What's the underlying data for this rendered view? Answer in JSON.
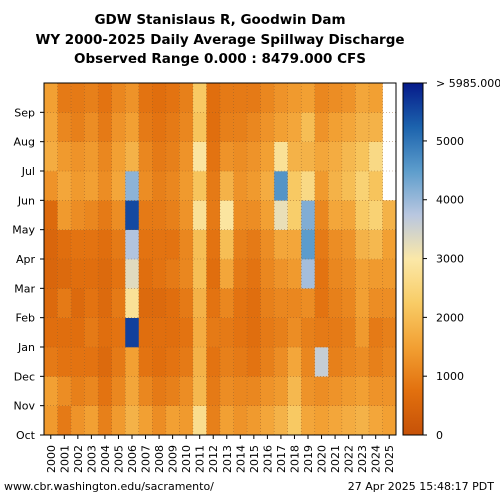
{
  "chart_data": {
    "type": "heatmap",
    "title": [
      "GDW Stanislaus R, Goodwin Dam",
      "WY 2000-2025 Daily Average Spillway Discharge",
      "Observed Range 0.000 : 8479.000 CFS"
    ],
    "xlabel": "",
    "ylabel": "",
    "x_categories": [
      "2000",
      "2001",
      "2002",
      "2003",
      "2004",
      "2005",
      "2006",
      "2007",
      "2008",
      "2009",
      "2010",
      "2011",
      "2012",
      "2013",
      "2014",
      "2015",
      "2016",
      "2017",
      "2018",
      "2019",
      "2020",
      "2021",
      "2022",
      "2023",
      "2024",
      "2025"
    ],
    "y_categories": [
      "Oct",
      "Nov",
      "Dec",
      "Jan",
      "Feb",
      "Mar",
      "Apr",
      "May",
      "Jun",
      "Jul",
      "Aug",
      "Sep"
    ],
    "colorbar": {
      "ticks": [
        0,
        1000,
        2000,
        3000,
        4000,
        5000
      ],
      "max_label": "> 5985.000",
      "range": [
        0,
        5985
      ]
    },
    "colorscale": [
      "#c65108",
      "#e2700e",
      "#f2a033",
      "#f8cc66",
      "#fbe8a8",
      "#b9c7e0",
      "#5d9dcc",
      "#1c63ad",
      "#061a8a"
    ],
    "grid": true,
    "values": [
      [
        1400,
        1500,
        900,
        700,
        600,
        500,
        500,
        600,
        1300,
        1700,
        1600,
        1500
      ],
      [
        900,
        1200,
        800,
        700,
        900,
        600,
        700,
        1400,
        1600,
        1400,
        1100,
        900
      ],
      [
        1300,
        1000,
        800,
        700,
        600,
        700,
        800,
        1200,
        1400,
        1300,
        1000,
        900
      ],
      [
        1500,
        1100,
        800,
        900,
        800,
        700,
        800,
        1100,
        1500,
        1400,
        1200,
        1000
      ],
      [
        1000,
        800,
        600,
        700,
        600,
        600,
        700,
        900,
        1200,
        1100,
        900,
        800
      ],
      [
        1400,
        1100,
        900,
        800,
        900,
        800,
        900,
        1200,
        1600,
        1500,
        1300,
        1100
      ],
      [
        1800,
        1600,
        1500,
        5600,
        2800,
        3300,
        3800,
        5500,
        4100,
        1800,
        1500,
        1300
      ],
      [
        1500,
        1100,
        800,
        700,
        600,
        700,
        800,
        900,
        1200,
        1100,
        900,
        800
      ],
      [
        1200,
        900,
        700,
        700,
        600,
        800,
        800,
        900,
        1000,
        900,
        800,
        700
      ],
      [
        1500,
        1000,
        800,
        700,
        700,
        900,
        800,
        1000,
        1100,
        1000,
        900,
        800
      ],
      [
        1400,
        1200,
        900,
        800,
        900,
        1100,
        1100,
        1300,
        1400,
        1300,
        1100,
        1000
      ],
      [
        2700,
        1900,
        1800,
        1700,
        1800,
        2000,
        2000,
        2800,
        2100,
        2900,
        2100,
        2200
      ],
      [
        1000,
        900,
        800,
        900,
        800,
        700,
        800,
        900,
        900,
        800,
        700,
        700
      ],
      [
        1500,
        1200,
        1000,
        900,
        1100,
        1600,
        2000,
        2900,
        1800,
        1300,
        1000,
        900
      ],
      [
        1300,
        1100,
        900,
        800,
        800,
        900,
        1000,
        1200,
        1300,
        1200,
        1000,
        900
      ],
      [
        1400,
        1100,
        800,
        700,
        700,
        800,
        900,
        1200,
        1400,
        1300,
        1100,
        900
      ],
      [
        1600,
        1300,
        1000,
        900,
        1000,
        1100,
        1200,
        1500,
        1700,
        1500,
        1300,
        1100
      ],
      [
        1800,
        1400,
        1200,
        1000,
        1100,
        1300,
        1600,
        3200,
        4600,
        2800,
        1500,
        1300
      ],
      [
        2200,
        1900,
        1600,
        1200,
        1100,
        1400,
        1600,
        2300,
        2200,
        1800,
        1600,
        1400
      ],
      [
        1600,
        1300,
        1100,
        1000,
        1200,
        3900,
        4500,
        4200,
        2600,
        1800,
        2000,
        1500
      ],
      [
        1500,
        1200,
        3600,
        900,
        800,
        800,
        900,
        1100,
        1400,
        1600,
        1300,
        1100
      ],
      [
        1600,
        1300,
        1000,
        900,
        1000,
        1100,
        1200,
        1600,
        1800,
        1700,
        1500,
        1200
      ],
      [
        1700,
        1400,
        1100,
        1000,
        1100,
        1200,
        1300,
        1600,
        2000,
        1900,
        1600,
        1300
      ],
      [
        1800,
        1500,
        1200,
        1400,
        1500,
        1500,
        1800,
        2200,
        2400,
        2100,
        1800,
        1600
      ],
      [
        1600,
        1300,
        1000,
        900,
        1200,
        1400,
        1900,
        2400,
        2100,
        2600,
        1800,
        1500
      ],
      [
        1500,
        1300,
        1100,
        1000,
        1200,
        1400,
        1500,
        1800
      ]
    ]
  },
  "footer": {
    "source": "www.cbr.washington.edu/sacramento/",
    "timestamp": "27 Apr 2025 15:48:17 PDT"
  }
}
